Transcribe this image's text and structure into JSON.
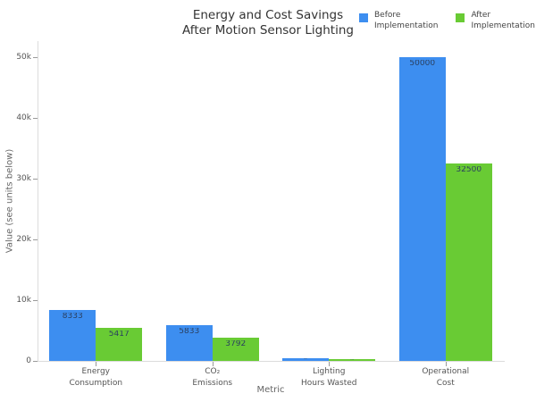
{
  "title": "Energy and Cost Savings\nAfter Motion Sensor Lighting",
  "legend": [
    {
      "label": "Before\nImplementation",
      "color": "#3d8ef0"
    },
    {
      "label": "After\nImplementation",
      "color": "#69cb34"
    }
  ],
  "chart_data": {
    "type": "bar",
    "title": "Energy and Cost Savings After Motion Sensor Lighting",
    "categories": [
      "Energy\nConsumption",
      "CO₂\nEmissions",
      "Lighting\nHours Wasted",
      "Operational\nCost"
    ],
    "series": [
      {
        "name": "Before Implementation",
        "color": "#3d8ef0",
        "values": [
          8333,
          5833,
          417,
          50000
        ]
      },
      {
        "name": "After Implementation",
        "color": "#69cb34",
        "values": [
          5417,
          3792,
          271,
          32500
        ]
      }
    ],
    "xlabel": "Metric",
    "ylabel": "Value (see units below)",
    "yticks": {
      "values": [
        0,
        10000,
        20000,
        30000,
        40000,
        50000
      ],
      "labels": [
        "0",
        "10k",
        "20k",
        "30k",
        "40k",
        "50k"
      ]
    },
    "ylim": [
      0,
      52600
    ],
    "grid": false,
    "legend_position": "top-right",
    "bar_value_labels": true
  }
}
